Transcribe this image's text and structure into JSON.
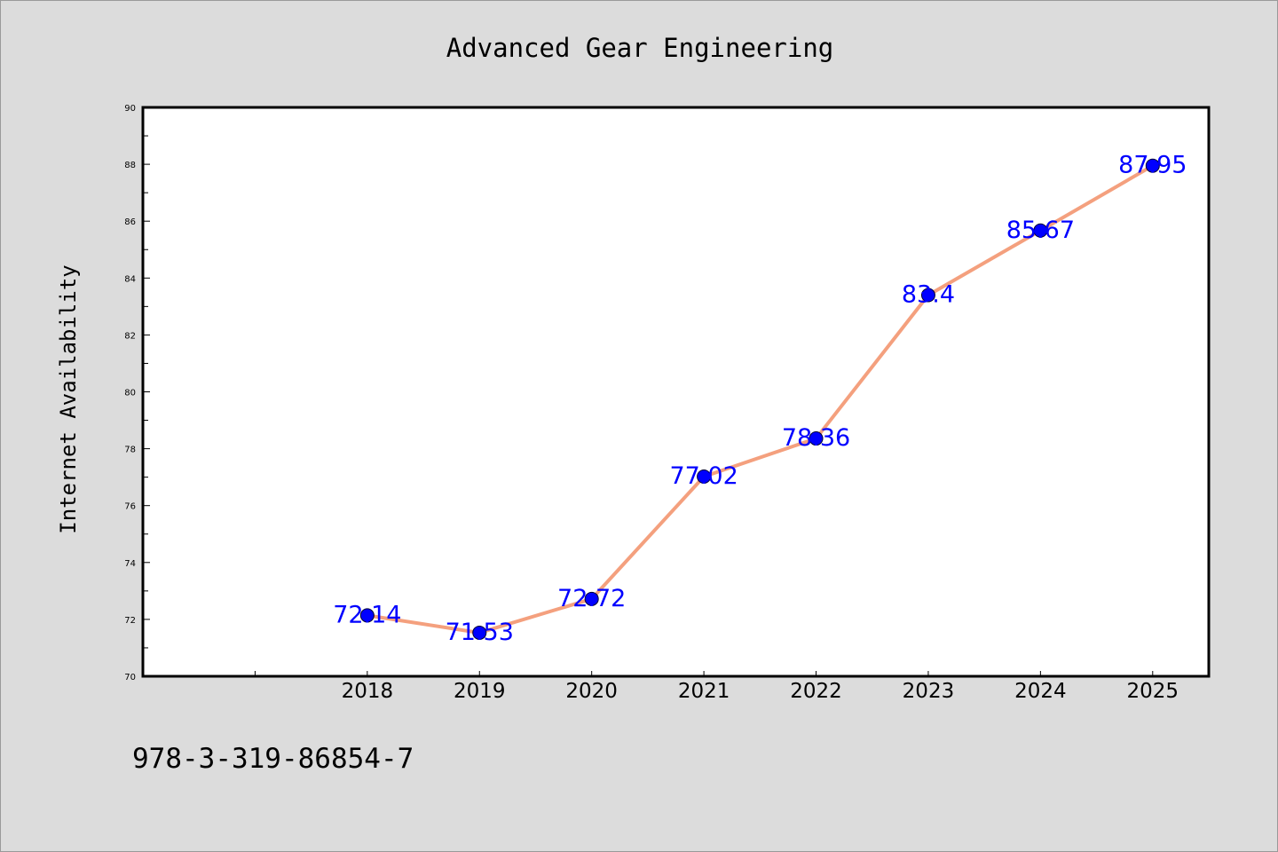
{
  "chart_data": {
    "type": "line",
    "title": "Advanced Gear Engineering",
    "xlabel": "",
    "ylabel": "Internet Availability",
    "categories": [
      "2018",
      "2019",
      "2020",
      "2021",
      "2022",
      "2023",
      "2024",
      "2025"
    ],
    "series": [
      {
        "values": [
          72.14,
          71.53,
          72.72,
          77.02,
          78.36,
          83.4,
          85.67,
          87.95
        ],
        "data_labels": [
          "72.14",
          "71.53",
          "72.72",
          "77.02",
          "78.36",
          "83.4",
          "85.67",
          "87.95"
        ]
      }
    ],
    "x_range": [
      2016,
      2025.5
    ],
    "ylim": [
      70,
      90
    ],
    "y_ticks": [
      "70",
      "72",
      "74",
      "76",
      "78",
      "80",
      "82",
      "84",
      "86",
      "88",
      "90"
    ],
    "grid": false,
    "legend": "none",
    "colors": {
      "line": "#f4a07e",
      "marker": "#0000ff",
      "data_label": "#0000ff",
      "background": "#dcdcdc",
      "plot_background": "#ffffff"
    }
  },
  "footer_text": "978-3-319-86854-7"
}
